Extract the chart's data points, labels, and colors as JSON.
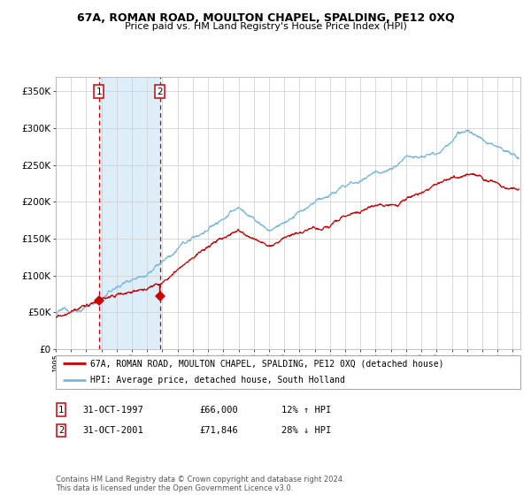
{
  "title": "67A, ROMAN ROAD, MOULTON CHAPEL, SPALDING, PE12 0XQ",
  "subtitle": "Price paid vs. HM Land Registry's House Price Index (HPI)",
  "legend_line1": "67A, ROMAN ROAD, MOULTON CHAPEL, SPALDING, PE12 0XQ (detached house)",
  "legend_line2": "HPI: Average price, detached house, South Holland",
  "table_row1": [
    "1",
    "31-OCT-1997",
    "£66,000",
    "12% ↑ HPI"
  ],
  "table_row2": [
    "2",
    "31-OCT-2001",
    "£71,846",
    "28% ↓ HPI"
  ],
  "footnote": "Contains HM Land Registry data © Crown copyright and database right 2024.\nThis data is licensed under the Open Government Licence v3.0.",
  "sale1_year": 1997.83,
  "sale2_year": 2001.83,
  "sale1_price": 66000,
  "sale2_price": 71846,
  "hpi_color": "#7ab8d9",
  "price_color": "#cc0000",
  "shade_color": "#ddeef8",
  "grid_color": "#cccccc",
  "bg_color": "#ffffff",
  "ylim": [
    0,
    370000
  ],
  "xlim_start": 1995.0,
  "xlim_end": 2025.5,
  "yticks": [
    0,
    50000,
    100000,
    150000,
    200000,
    250000,
    300000,
    350000
  ]
}
